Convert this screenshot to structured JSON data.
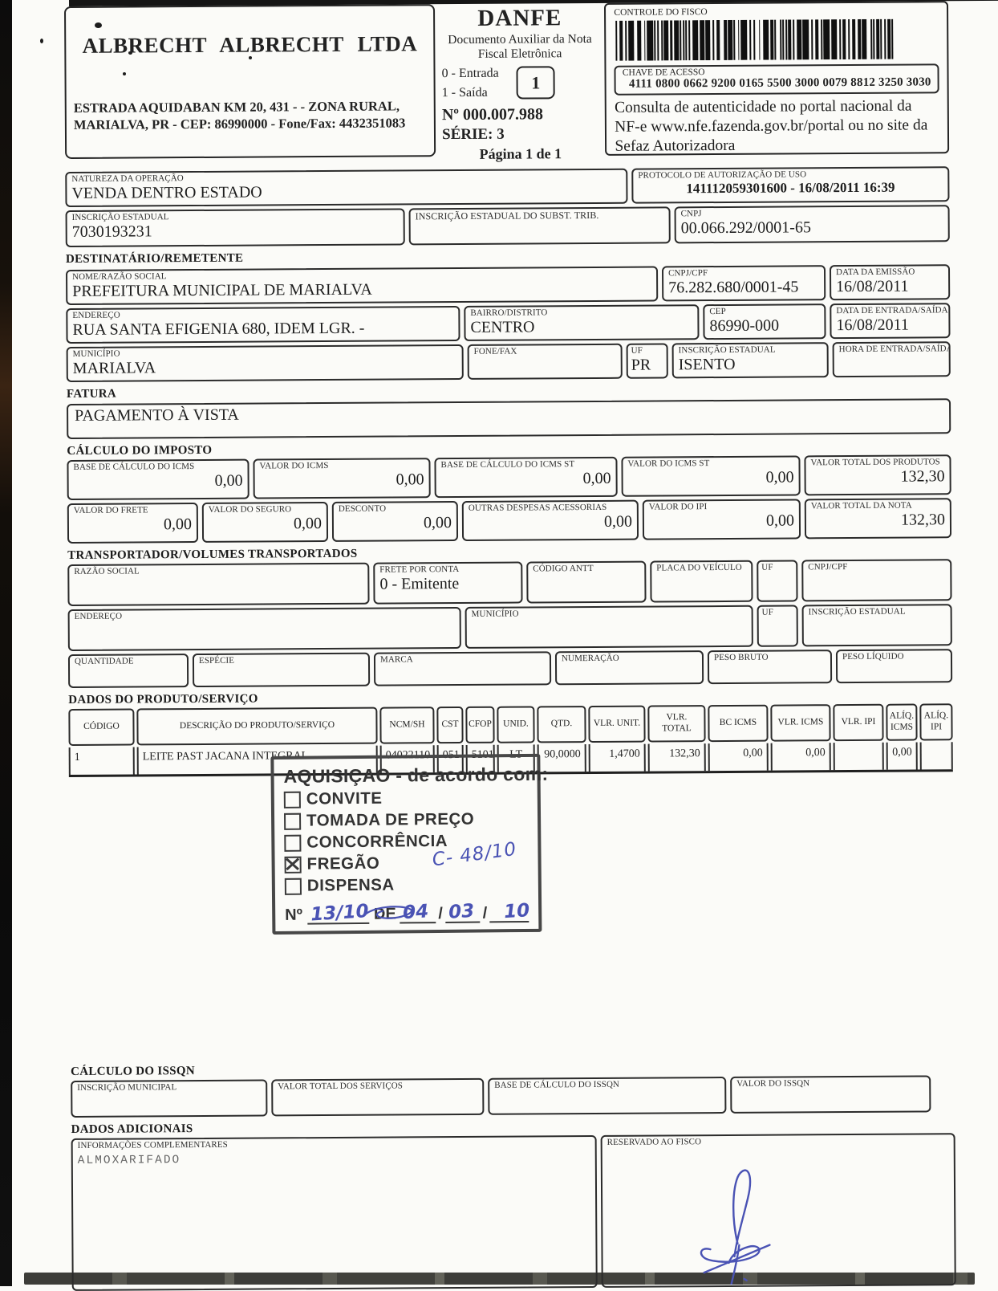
{
  "emitter": {
    "name": "ALBRECHT  ALBRECHT LTDA",
    "address1": "ESTRADA  AQUIDABAN KM 20, 431 -  - ZONA RURAL,",
    "address2": "MARIALVA, PR - CEP: 86990000 - Fone/Fax: 4432351083"
  },
  "danfe": {
    "title": "DANFE",
    "subtitle": "Documento Auxiliar da Nota Fiscal Eletrônica",
    "entry_option": "0 - Entrada",
    "exit_option": "1 - Saída",
    "type_value": "1",
    "number": "Nº 000.007.988",
    "series": "SÉRIE: 3",
    "page": "Página 1 de 1"
  },
  "fisco_control": {
    "label": "CONTROLE DO FISCO",
    "access_key_label": "CHAVE DE ACESSO",
    "access_key": "4111 0800 0662 9200 0165 5500 3000 0079 8812 3250 3030",
    "consulta_text": "Consulta de autenticidade no portal nacional da NF-e www.nfe.fazenda.gov.br/portal ou no site da Sefaz Autorizadora"
  },
  "operation": {
    "nature_label": "NATUREZA DA OPERAÇÃO",
    "nature": "VENDA DENTRO ESTADO",
    "protocol_label": "PROTOCOLO DE AUTORIZAÇÃO DE USO",
    "protocol": "141112059301600 - 16/08/2011 16:39",
    "ie_label": "INSCRIÇÃO ESTADUAL",
    "ie": "7030193231",
    "ie_st_label": "INSCRIÇÃO ESTADUAL DO SUBST. TRIB.",
    "ie_st": "",
    "cnpj_label": "CNPJ",
    "cnpj": "00.066.292/0001-65"
  },
  "recipient": {
    "title": "DESTINATÁRIO/REMETENTE",
    "name_label": "NOME/RAZÃO SOCIAL",
    "name": "PREFEITURA MUNICIPAL DE  MARIALVA",
    "cnpj_label": "CNPJ/CPF",
    "cnpj": "76.282.680/0001-45",
    "emission_label": "DATA DA EMISSÃO",
    "emission": "16/08/2011",
    "address_label": "ENDEREÇO",
    "address": "RUA SANTA EFIGENIA 680, IDEM LGR. -",
    "district_label": "BAIRRO/DISTRITO",
    "district": "CENTRO",
    "cep_label": "CEP",
    "cep": "86990-000",
    "entry_date_label": "DATA DE ENTRADA/SAÍDA",
    "entry_date": "16/08/2011",
    "city_label": "MUNICÍPIO",
    "city": "MARIALVA",
    "phone_label": "FONE/FAX",
    "phone": "",
    "uf_label": "UF",
    "uf": "PR",
    "ie_label": "INSCRIÇÃO ESTADUAL",
    "ie": "ISENTO",
    "entry_time_label": "HORA DE ENTRADA/SAÍDA",
    "entry_time": ""
  },
  "invoice": {
    "title": "FATURA",
    "payment": "PAGAMENTO À VISTA"
  },
  "tax": {
    "title": "CÁLCULO DO IMPOSTO",
    "icms_base_label": "BASE DE CÁLCULO DO ICMS",
    "icms_base": "0,00",
    "icms_value_label": "VALOR DO ICMS",
    "icms_value": "0,00",
    "icms_st_base_label": "BASE DE CÁLCULO DO ICMS ST",
    "icms_st_base": "0,00",
    "icms_st_value_label": "VALOR DO ICMS ST",
    "icms_st_value": "0,00",
    "products_total_label": "VALOR TOTAL DOS PRODUTOS",
    "products_total": "132,30",
    "freight_label": "VALOR DO FRETE",
    "freight": "0,00",
    "insurance_label": "VALOR DO SEGURO",
    "insurance": "0,00",
    "discount_label": "DESCONTO",
    "discount": "0,00",
    "other_label": "OUTRAS DESPESAS ACESSORIAS",
    "other": "0,00",
    "ipi_label": "VALOR DO IPI",
    "ipi": "0,00",
    "total_label": "VALOR TOTAL DA NOTA",
    "total": "132,30"
  },
  "carrier": {
    "title": "TRANSPORTADOR/VOLUMES TRANSPORTADOS",
    "razao_label": "RAZÃO SOCIAL",
    "razao": "",
    "freight_mode_label": "FRETE POR CONTA",
    "freight_mode": "0 - Emitente",
    "antt_label": "CÓDIGO ANTT",
    "antt": "",
    "plate_label": "PLACA DO VEÍCULO",
    "plate": "",
    "uf1_label": "UF",
    "uf1": "",
    "cnpj_label": "CNPJ/CPF",
    "cnpj": "",
    "address_label": "ENDEREÇO",
    "address": "",
    "city_label": "MUNICÍPIO",
    "city": "",
    "uf2_label": "UF",
    "uf2": "",
    "ie_label": "INSCRIÇÃO ESTADUAL",
    "ie": "",
    "qty_label": "QUANTIDADE",
    "qty": "",
    "species_label": "ESPÉCIE",
    "species": "",
    "brand_label": "MARCA",
    "brand": "",
    "numbering_label": "NUMERAÇÃO",
    "numbering": "",
    "gross_label": "PESO BRUTO",
    "gross": "",
    "net_label": "PESO LÍQUIDO",
    "net": ""
  },
  "products": {
    "title": "DADOS DO PRODUTO/SERVIÇO",
    "headers": [
      "CÓDIGO",
      "DESCRIÇÃO DO PRODUTO/SERVIÇO",
      "NCM/SH",
      "CST",
      "CFOP",
      "UNID.",
      "QTD.",
      "VLR. UNIT.",
      "VLR. TOTAL",
      "BC ICMS",
      "VLR. ICMS",
      "VLR. IPI",
      "ALÍQ. ICMS",
      "ALÍQ. IPI"
    ],
    "rows": [
      {
        "code": "1",
        "desc": "LEITE PAST JACANA INTEGRAL",
        "ncm": "04022110",
        "cst": "051",
        "cfop": "5101",
        "unit": "LT",
        "qty": "90,0000",
        "unit_price": "1,4700",
        "total": "132,30",
        "bc_icms": "0,00",
        "vlr_icms": "0,00",
        "vlr_ipi": "",
        "aliq_icms": "0,00",
        "aliq_ipi": ""
      }
    ]
  },
  "stamp": {
    "title": "AQUISIÇAO - de acordo com:",
    "options": [
      {
        "label": "CONVITE"
      },
      {
        "label": "TOMADA DE PREÇO"
      },
      {
        "label": "CONCORRÊNCIA"
      },
      {
        "label": "FREGÃO"
      },
      {
        "label": "DISPENSA"
      }
    ],
    "annotation": "C- 48/10",
    "number_prefix": "Nº",
    "number_value": "13/10",
    "de_label": "DE",
    "day": "04",
    "sep1": "/",
    "month": "03",
    "sep2": "/",
    "year": "10"
  },
  "issqn": {
    "title": "CÁLCULO DO ISSQN",
    "im_label": "INSCRIÇÃO MUNICIPAL",
    "im": "",
    "services_label": "VALOR TOTAL DOS SERVIÇOS",
    "services": "",
    "base_label": "BASE DE CÁLCULO DO ISSQN",
    "base": "",
    "value_label": "VALOR DO ISSQN",
    "value": ""
  },
  "additional": {
    "title": "DADOS ADICIONAIS",
    "info_label": "INFORMAÇÕES COMPLEMENTARES",
    "info": "ALMOXARIFADO",
    "fisco_label": "RESERVADO AO FISCO"
  },
  "colors": {
    "ink": "#1d1d1d",
    "pen_blue": "#4a53b4"
  }
}
